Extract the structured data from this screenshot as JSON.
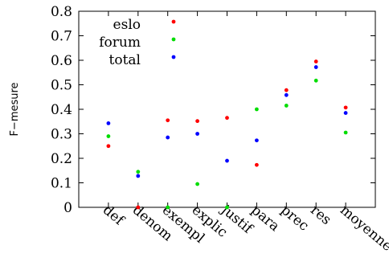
{
  "chart_data": {
    "type": "scatter",
    "ylabel": "F−mesure",
    "xlabel": "",
    "ylim": [
      0,
      0.8
    ],
    "yticks": [
      "0",
      "0.1",
      "0.2",
      "0.3",
      "0.4",
      "0.5",
      "0.6",
      "0.7",
      "0.8"
    ],
    "categories": [
      "def",
      "denom",
      "exempl",
      "explic",
      "justif",
      "para",
      "prec",
      "res",
      "moyenne"
    ],
    "grid": false,
    "legend_position": "top-left",
    "series": [
      {
        "name": "eslo",
        "color": "#ff0000",
        "values": [
          0.25,
          0.0,
          0.355,
          0.352,
          0.365,
          0.173,
          0.478,
          0.595,
          0.407
        ]
      },
      {
        "name": "forum",
        "color": "#00dd00",
        "values": [
          0.29,
          0.145,
          0.0,
          0.095,
          0.0,
          0.4,
          0.415,
          0.517,
          0.305
        ]
      },
      {
        "name": "total",
        "color": "#0000ff",
        "values": [
          0.343,
          0.128,
          0.285,
          0.3,
          0.19,
          0.273,
          0.458,
          0.572,
          0.385
        ]
      }
    ]
  }
}
